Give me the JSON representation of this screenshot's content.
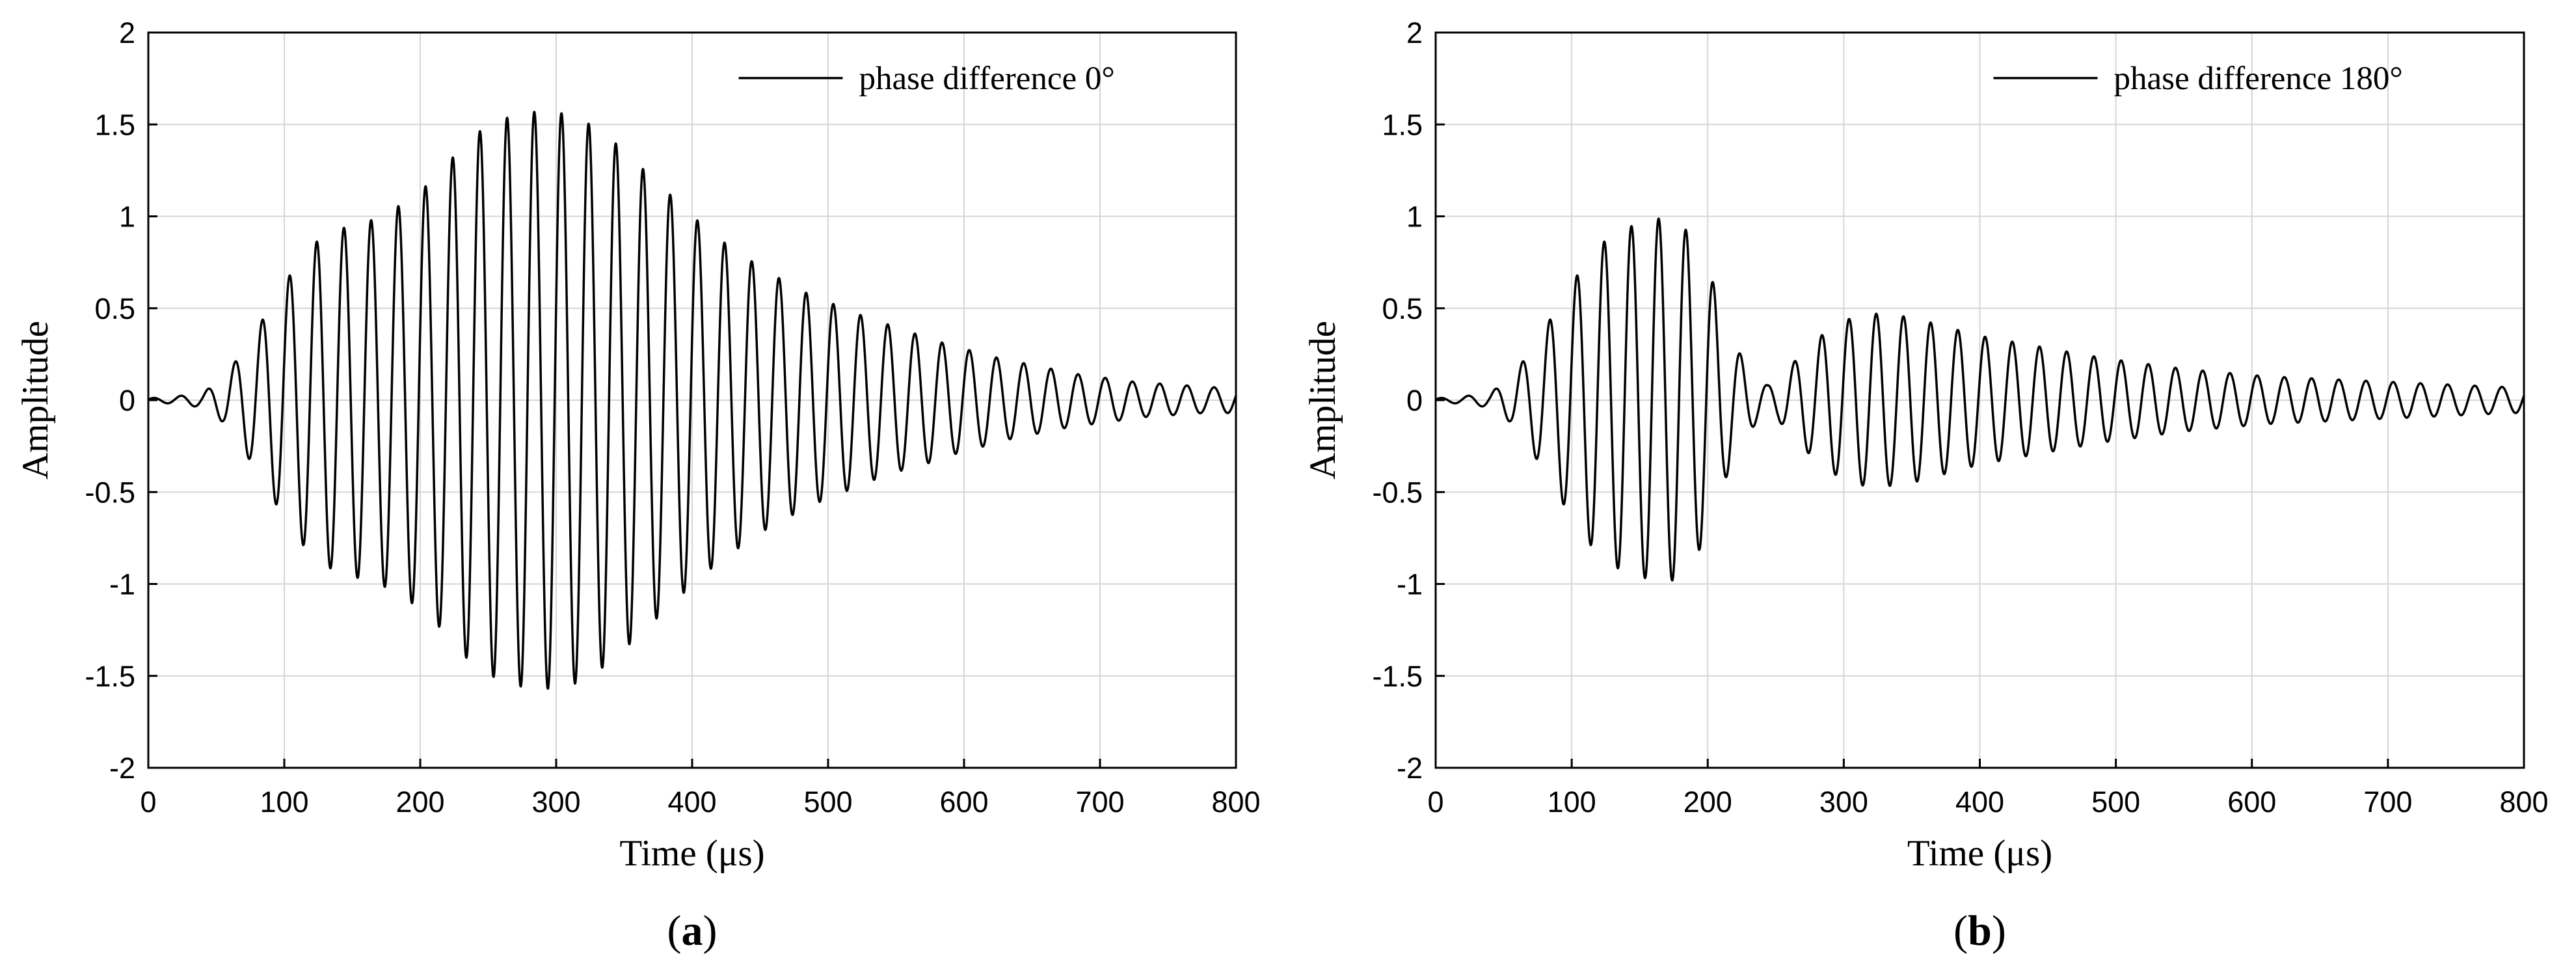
{
  "chart_data": [
    {
      "type": "line",
      "panel": "a",
      "caption_letter": "a",
      "xlabel": "Time (μs)",
      "ylabel": "Amplitude",
      "xlim": [
        0,
        800
      ],
      "ylim": [
        -2,
        2
      ],
      "xticks": [
        0,
        100,
        200,
        300,
        400,
        500,
        600,
        700,
        800
      ],
      "yticks": [
        2,
        1.5,
        1,
        0.5,
        0,
        -0.5,
        -1,
        -1.5,
        -2
      ],
      "grid": true,
      "legend_position": "top-right",
      "series": [
        {
          "name": "phase difference 0°",
          "signal": "sinusoid",
          "frequency_khz": 50,
          "envelope": {
            "times": [
              0,
              20,
              40,
              55,
              65,
              75,
              85,
              95,
              105,
              115,
              125,
              135,
              145,
              155,
              165,
              175,
              185,
              195,
              205,
              215,
              225,
              235,
              245,
              255,
              265,
              275,
              285,
              295,
              305,
              315,
              325,
              335,
              345,
              355,
              365,
              375,
              385,
              395,
              405,
              415,
              425,
              435,
              445,
              455,
              465,
              475,
              485,
              495,
              505,
              515,
              525,
              535,
              545,
              555,
              565,
              575,
              585,
              595,
              605,
              615,
              625,
              635,
              645,
              655,
              665,
              675,
              685,
              695,
              705,
              715,
              725,
              735,
              745,
              755,
              765,
              775,
              785,
              800
            ],
            "amplitudes": [
              0.01,
              0.02,
              0.04,
              0.12,
              0.22,
              0.33,
              0.45,
              0.58,
              0.69,
              0.8,
              0.87,
              0.92,
              0.94,
              0.97,
              0.98,
              1.02,
              1.06,
              1.11,
              1.17,
              1.24,
              1.33,
              1.41,
              1.47,
              1.51,
              1.54,
              1.56,
              1.57,
              1.57,
              1.56,
              1.54,
              1.5,
              1.45,
              1.39,
              1.32,
              1.25,
              1.18,
              1.11,
              1.04,
              0.97,
              0.91,
              0.85,
              0.8,
              0.75,
              0.7,
              0.66,
              0.62,
              0.58,
              0.55,
              0.52,
              0.49,
              0.46,
              0.43,
              0.41,
              0.38,
              0.36,
              0.34,
              0.31,
              0.29,
              0.27,
              0.25,
              0.23,
              0.21,
              0.2,
              0.18,
              0.17,
              0.15,
              0.14,
              0.13,
              0.12,
              0.11,
              0.1,
              0.09,
              0.09,
              0.08,
              0.08,
              0.07,
              0.07,
              0.07
            ]
          }
        }
      ]
    },
    {
      "type": "line",
      "panel": "b",
      "caption_letter": "b",
      "xlabel": "Time (μs)",
      "ylabel": "Amplitude",
      "xlim": [
        0,
        800
      ],
      "ylim": [
        -2,
        2
      ],
      "xticks": [
        0,
        100,
        200,
        300,
        400,
        500,
        600,
        700,
        800
      ],
      "yticks": [
        2,
        1.5,
        1,
        0.5,
        0,
        -0.5,
        -1,
        -1.5,
        -2
      ],
      "grid": true,
      "legend_position": "top-right",
      "series": [
        {
          "name": "phase difference 180°",
          "signal": "sinusoid",
          "frequency_khz": 50,
          "envelope": {
            "times": [
              0,
              20,
              40,
              55,
              65,
              75,
              85,
              95,
              105,
              115,
              125,
              135,
              145,
              155,
              165,
              175,
              185,
              195,
              205,
              212,
              220,
              228,
              236,
              244,
              252,
              260,
              270,
              280,
              290,
              300,
              310,
              320,
              330,
              340,
              350,
              360,
              370,
              380,
              400,
              430,
              460,
              490,
              520,
              550,
              580,
              610,
              640,
              670,
              700,
              730,
              760,
              790,
              800
            ],
            "amplitudes": [
              0.01,
              0.02,
              0.04,
              0.12,
              0.22,
              0.33,
              0.45,
              0.58,
              0.69,
              0.8,
              0.87,
              0.92,
              0.95,
              0.97,
              0.99,
              0.98,
              0.92,
              0.8,
              0.62,
              0.45,
              0.3,
              0.2,
              0.12,
              0.08,
              0.11,
              0.18,
              0.26,
              0.33,
              0.39,
              0.43,
              0.46,
              0.47,
              0.47,
              0.46,
              0.45,
              0.43,
              0.41,
              0.39,
              0.35,
              0.31,
              0.27,
              0.23,
              0.2,
              0.17,
              0.15,
              0.13,
              0.12,
              0.11,
              0.1,
              0.09,
              0.08,
              0.07,
              0.07
            ]
          }
        }
      ]
    }
  ]
}
